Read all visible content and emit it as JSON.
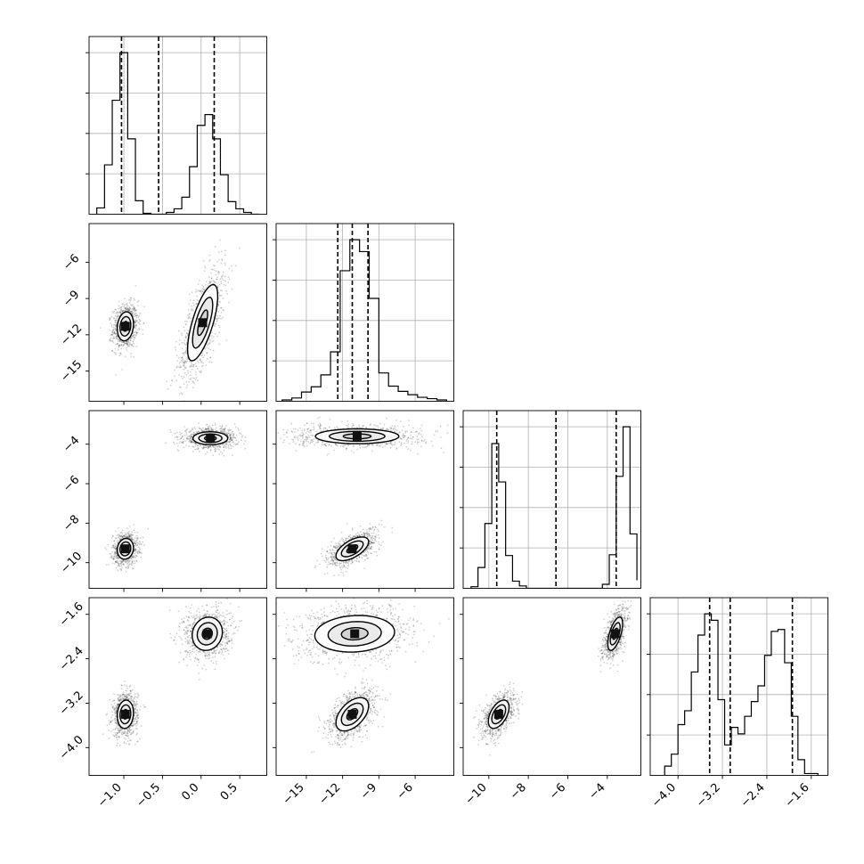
{
  "chart_data": {
    "type": "corner",
    "grid": true,
    "parameters": [
      {
        "index": 0,
        "range": [
          -1.45,
          0.85
        ],
        "ticks": [
          -1.0,
          -0.5,
          0.0,
          0.5
        ],
        "tick_labels": [
          "−1.0",
          "−0.5",
          "0.0",
          "0.5"
        ],
        "quantiles": [
          -1.03,
          -0.55,
          0.17
        ],
        "histogram": {
          "bin_edges": [
            -1.35,
            -1.25,
            -1.15,
            -1.05,
            -0.95,
            -0.85,
            -0.75,
            -0.65,
            -0.55,
            -0.45,
            -0.35,
            -0.25,
            -0.15,
            -0.05,
            0.05,
            0.15,
            0.25,
            0.35,
            0.45,
            0.55,
            0.65,
            0.75
          ],
          "counts": [
            0.07,
            0.55,
            1.27,
            1.8,
            0.84,
            0.15,
            0.01,
            0.0,
            0.0,
            0.02,
            0.06,
            0.19,
            0.53,
            0.99,
            1.11,
            0.84,
            0.44,
            0.14,
            0.06,
            0.02,
            0.0
          ]
        }
      },
      {
        "index": 1,
        "range": [
          -17.5,
          -2.8
        ],
        "ticks": [
          -15,
          -12,
          -9,
          -6
        ],
        "tick_labels": [
          "−15",
          "−12",
          "−9",
          "−6"
        ],
        "quantiles": [
          -12.4,
          -11.2,
          -9.9
        ],
        "histogram": {
          "bin_edges": [
            -17.0,
            -16.2,
            -15.4,
            -14.6,
            -13.8,
            -13.0,
            -12.2,
            -11.4,
            -10.6,
            -9.8,
            -9.0,
            -8.2,
            -7.4,
            -6.6,
            -5.8,
            -5.0,
            -4.2,
            -3.4
          ],
          "counts": [
            0.02,
            0.05,
            0.14,
            0.22,
            0.4,
            0.75,
            1.98,
            2.45,
            2.27,
            1.56,
            0.43,
            0.23,
            0.15,
            0.1,
            0.06,
            0.04,
            0.02
          ]
        }
      },
      {
        "index": 2,
        "range": [
          -11.3,
          -2.3
        ],
        "ticks": [
          -10,
          -8,
          -6,
          -4
        ],
        "tick_labels": [
          "−10",
          "−8",
          "−6",
          "−4"
        ],
        "quantiles": [
          -9.6,
          -6.6,
          -3.55
        ],
        "histogram": {
          "bin_edges": [
            -10.9,
            -10.55,
            -10.2,
            -9.85,
            -9.5,
            -9.15,
            -8.8,
            -8.45,
            -8.1,
            -7.75,
            -7.4,
            -7.05,
            -6.7,
            -6.35,
            -6.0,
            -5.65,
            -5.3,
            -4.95,
            -4.6,
            -4.25,
            -3.9,
            -3.55,
            -3.2,
            -2.85,
            -2.5
          ],
          "counts": [
            0.02,
            0.26,
            0.81,
            1.81,
            1.33,
            0.41,
            0.09,
            0.03,
            0.0,
            0.0,
            0.0,
            0.0,
            0.0,
            0.0,
            0.0,
            0.0,
            0.0,
            0.0,
            0.0,
            0.05,
            0.42,
            1.4,
            2.02,
            0.68,
            0.1
          ]
        }
      },
      {
        "index": 3,
        "range": [
          -4.5,
          -1.3
        ],
        "ticks": [
          -4.0,
          -3.2,
          -2.4,
          -1.6
        ],
        "tick_labels": [
          "−4.0",
          "−3.2",
          "−2.4",
          "−1.6"
        ],
        "quantiles": [
          -3.43,
          -3.06,
          -1.94
        ],
        "histogram": {
          "bin_edges": [
            -4.24,
            -4.12,
            -4.0,
            -3.88,
            -3.76,
            -3.64,
            -3.52,
            -3.4,
            -3.28,
            -3.16,
            -3.04,
            -2.92,
            -2.8,
            -2.68,
            -2.56,
            -2.44,
            -2.32,
            -2.2,
            -2.08,
            -1.96,
            -1.84,
            -1.72,
            -1.6,
            -1.48
          ],
          "counts": [
            0.1,
            0.23,
            0.55,
            0.7,
            1.12,
            1.52,
            1.75,
            1.68,
            0.82,
            0.33,
            0.52,
            0.45,
            0.64,
            0.8,
            0.97,
            1.3,
            1.56,
            1.58,
            1.22,
            0.64,
            0.17,
            0.02,
            0.02
          ]
        }
      }
    ],
    "scatter_2d": [
      {
        "x": 0,
        "y": 1,
        "clusters": [
          {
            "mx": -0.98,
            "my": -11.3,
            "sx": 0.07,
            "sy": 0.8,
            "rho": 0.15,
            "w": 0.5
          },
          {
            "mx": 0.02,
            "my": -11.0,
            "sx": 0.13,
            "sy": 2.1,
            "rho": 0.7,
            "w": 0.5
          }
        ]
      },
      {
        "x": 0,
        "y": 2,
        "clusters": [
          {
            "mx": -0.98,
            "my": -9.3,
            "sx": 0.07,
            "sy": 0.35,
            "rho": 0.1,
            "w": 0.5
          },
          {
            "mx": 0.12,
            "my": -3.7,
            "sx": 0.15,
            "sy": 0.22,
            "rho": 0.0,
            "w": 0.5
          }
        ]
      },
      {
        "x": 0,
        "y": 3,
        "clusters": [
          {
            "mx": -0.98,
            "my": -3.4,
            "sx": 0.07,
            "sy": 0.17,
            "rho": 0.1,
            "w": 0.5
          },
          {
            "mx": 0.08,
            "my": -1.95,
            "sx": 0.13,
            "sy": 0.2,
            "rho": 0.1,
            "w": 0.5
          }
        ]
      },
      {
        "x": 1,
        "y": 2,
        "clusters": [
          {
            "mx": -11.2,
            "my": -9.3,
            "sx": 0.9,
            "sy": 0.4,
            "rho": 0.6,
            "w": 0.5
          },
          {
            "mx": -10.8,
            "my": -3.6,
            "sx": 2.3,
            "sy": 0.25,
            "rho": 0.0,
            "w": 0.5
          }
        ]
      },
      {
        "x": 1,
        "y": 3,
        "clusters": [
          {
            "mx": -11.2,
            "my": -3.4,
            "sx": 0.9,
            "sy": 0.2,
            "rho": 0.5,
            "w": 0.5
          },
          {
            "mx": -11.0,
            "my": -1.95,
            "sx": 2.2,
            "sy": 0.22,
            "rho": 0.1,
            "w": 0.5
          }
        ]
      },
      {
        "x": 2,
        "y": 3,
        "clusters": [
          {
            "mx": -9.5,
            "my": -3.4,
            "sx": 0.35,
            "sy": 0.17,
            "rho": 0.5,
            "w": 0.5
          },
          {
            "mx": -3.6,
            "my": -1.95,
            "sx": 0.25,
            "sy": 0.2,
            "rho": 0.6,
            "w": 0.5
          }
        ]
      }
    ],
    "contour_levels_sigma": [
      0.5,
      1.0,
      1.5
    ]
  }
}
